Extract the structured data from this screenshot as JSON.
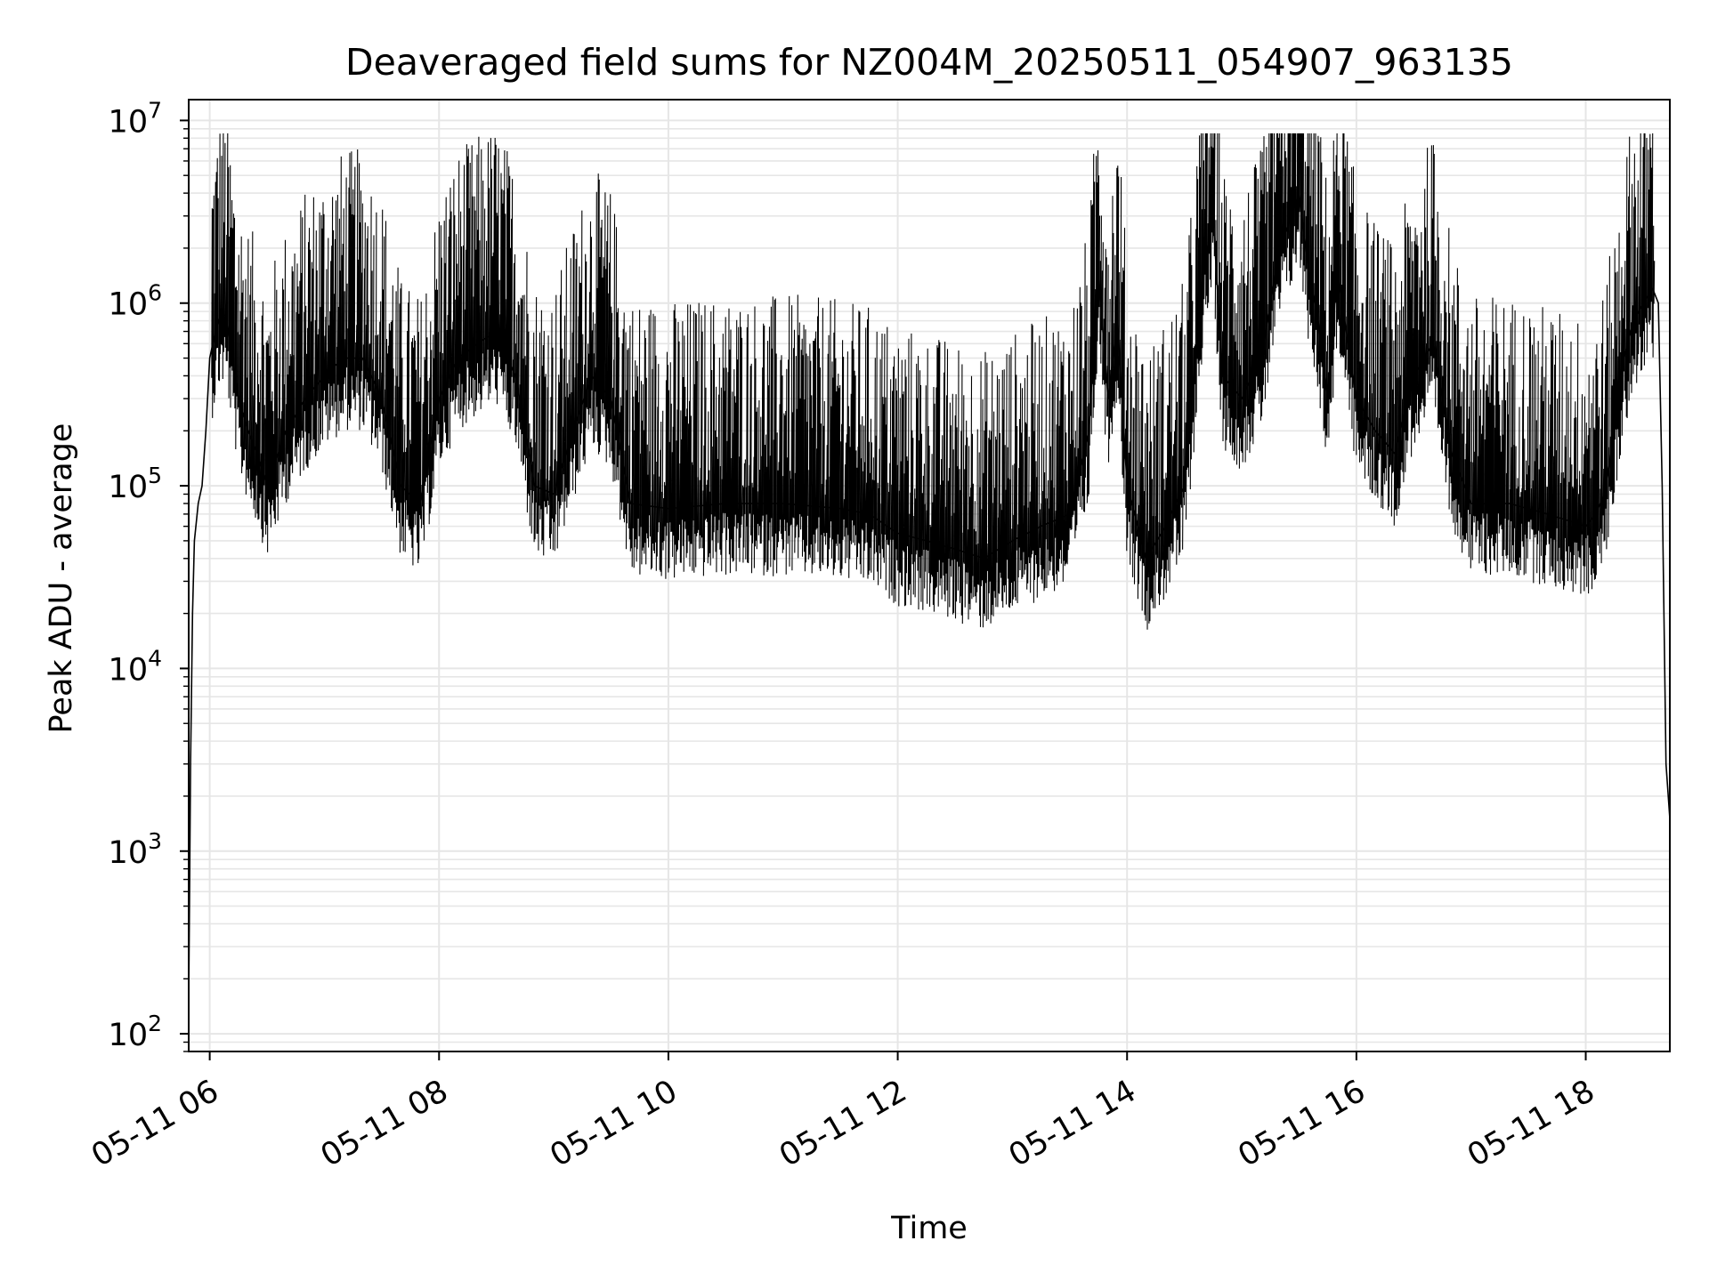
{
  "chart_data": {
    "type": "line",
    "title": "Deaveraged field sums for NZ004M_20250511_054907_963135",
    "xlabel": "Time",
    "ylabel": "Peak ADU - average",
    "yscale": "log",
    "xlim": [
      "05-11 05:49",
      "05-11 18:44"
    ],
    "ylim": [
      80,
      13000000
    ],
    "x_ticks": [
      "05-11 06",
      "05-11 08",
      "05-11 10",
      "05-11 12",
      "05-11 14",
      "05-11 16",
      "05-11 18"
    ],
    "y_ticks": [
      {
        "base": "10",
        "exp": "2"
      },
      {
        "base": "10",
        "exp": "3"
      },
      {
        "base": "10",
        "exp": "4"
      },
      {
        "base": "10",
        "exp": "5"
      },
      {
        "base": "10",
        "exp": "6"
      },
      {
        "base": "10",
        "exp": "7"
      }
    ],
    "grid": true,
    "line_color": "#000000",
    "series": [
      {
        "x": [
          "05-11 05:49",
          "05-11 05:50",
          "05-11 05:51",
          "05-11 05:52",
          "05-11 05:54",
          "05-11 05:56",
          "05-11 05:58",
          "05-11 06:00",
          "05-11 06:03",
          "05-11 06:06",
          "05-11 06:09",
          "05-11 06:12",
          "05-11 06:15",
          "05-11 06:20",
          "05-11 06:25",
          "05-11 06:30",
          "05-11 06:40",
          "05-11 06:50",
          "05-11 07:00",
          "05-11 07:10",
          "05-11 07:20",
          "05-11 07:30",
          "05-11 07:40",
          "05-11 07:50",
          "05-11 08:00",
          "05-11 08:10",
          "05-11 08:20",
          "05-11 08:30",
          "05-11 08:40",
          "05-11 08:50",
          "05-11 09:00",
          "05-11 09:10",
          "05-11 09:20",
          "05-11 09:30",
          "05-11 09:40",
          "05-11 10:00",
          "05-11 10:30",
          "05-11 11:00",
          "05-11 11:30",
          "05-11 11:45",
          "05-11 12:00",
          "05-11 12:15",
          "05-11 12:30",
          "05-11 12:45",
          "05-11 13:00",
          "05-11 13:15",
          "05-11 13:30",
          "05-11 13:40",
          "05-11 13:45",
          "05-11 13:50",
          "05-11 13:55",
          "05-11 14:00",
          "05-11 14:10",
          "05-11 14:20",
          "05-11 14:30",
          "05-11 14:40",
          "05-11 14:45",
          "05-11 14:50",
          "05-11 15:00",
          "05-11 15:10",
          "05-11 15:20",
          "05-11 15:30",
          "05-11 15:35",
          "05-11 15:40",
          "05-11 15:45",
          "05-11 15:50",
          "05-11 16:00",
          "05-11 16:10",
          "05-11 16:20",
          "05-11 16:30",
          "05-11 16:40",
          "05-11 16:50",
          "05-11 17:00",
          "05-11 17:20",
          "05-11 17:40",
          "05-11 18:00",
          "05-11 18:05",
          "05-11 18:10",
          "05-11 18:15",
          "05-11 18:20",
          "05-11 18:25",
          "05-11 18:30",
          "05-11 18:35",
          "05-11 18:38",
          "05-11 18:40",
          "05-11 18:42",
          "05-11 18:44"
        ],
        "y": [
          150,
          3000,
          20000,
          50000,
          80000,
          100000,
          200000,
          500000,
          700000,
          900000,
          800000,
          500000,
          300000,
          200000,
          150000,
          100000,
          200000,
          300000,
          400000,
          500000,
          500000,
          300000,
          100000,
          80000,
          300000,
          500000,
          600000,
          700000,
          400000,
          100000,
          90000,
          200000,
          400000,
          300000,
          80000,
          75000,
          80000,
          80000,
          75000,
          70000,
          55000,
          50000,
          45000,
          40000,
          50000,
          60000,
          70000,
          200000,
          1500000,
          300000,
          800000,
          100000,
          40000,
          60000,
          100000,
          1500000,
          3000000,
          400000,
          300000,
          500000,
          2000000,
          4000000,
          1500000,
          800000,
          300000,
          1500000,
          300000,
          200000,
          150000,
          400000,
          600000,
          150000,
          80000,
          80000,
          70000,
          60000,
          70000,
          90000,
          200000,
          500000,
          800000,
          1000000,
          1200000,
          1000000,
          100000,
          3000,
          1500
        ]
      }
    ]
  }
}
